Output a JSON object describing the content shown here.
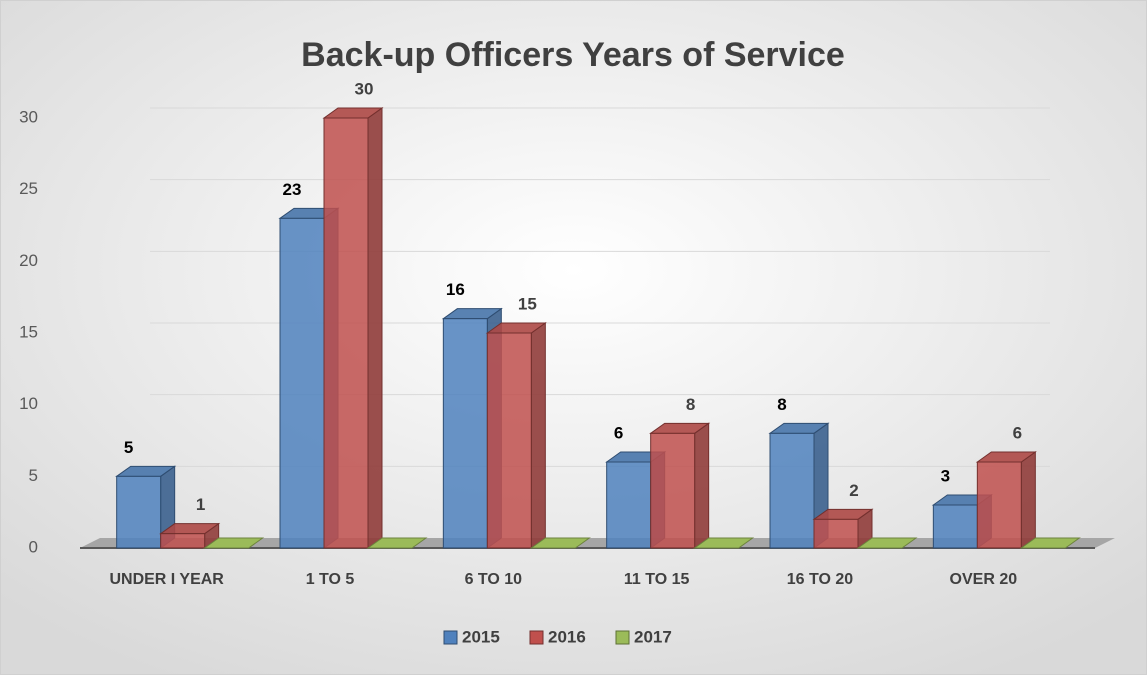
{
  "chart_data": {
    "type": "bar3d",
    "title": "Back-up Officers Years of Service",
    "categories": [
      "UNDER I YEAR",
      "1 TO 5",
      "6 TO 10",
      "11 TO 15",
      "16 TO 20",
      "OVER 20"
    ],
    "series": [
      {
        "name": "2015",
        "color": "#4f81bd",
        "values": [
          5,
          23,
          16,
          6,
          8,
          3
        ]
      },
      {
        "name": "2016",
        "color": "#c0504d",
        "values": [
          1,
          30,
          15,
          8,
          2,
          6
        ]
      },
      {
        "name": "2017",
        "color": "#9bbb59",
        "values": [
          0,
          0,
          0,
          0,
          0,
          0
        ]
      }
    ],
    "ylim": [
      0,
      30
    ],
    "yticks": [
      0,
      5,
      10,
      15,
      20,
      25,
      30
    ],
    "grid": true,
    "legend": "bottom"
  }
}
